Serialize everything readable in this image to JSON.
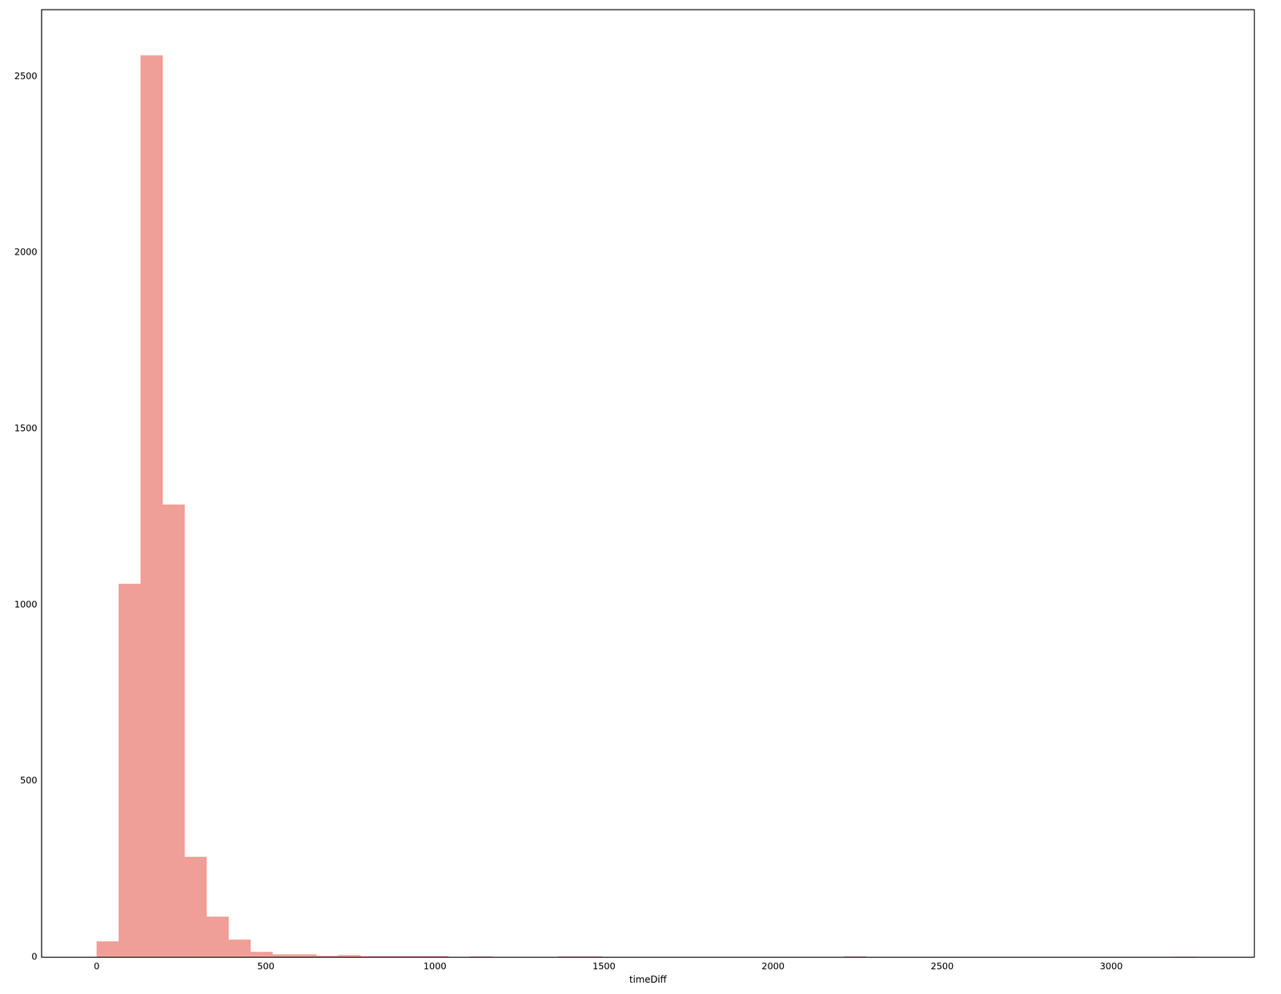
{
  "chart_data": {
    "type": "histogram",
    "x_label": "timeDiff",
    "bins": [
      0,
      65,
      130,
      195,
      260,
      325,
      390,
      455,
      520,
      585,
      650,
      715,
      780,
      845,
      910,
      975,
      1040,
      1105,
      1170,
      1235,
      1300,
      1365,
      1430,
      1495,
      1560,
      1625,
      1690,
      1755,
      1820,
      1885,
      1950,
      2015,
      2080,
      2145,
      2210,
      2275,
      2340,
      2405,
      2470,
      2535,
      2600,
      2665,
      2730,
      2795,
      2860,
      2925,
      2990,
      3055,
      3120,
      3185,
      3250
    ],
    "values": [
      45,
      1060,
      2560,
      1285,
      285,
      115,
      50,
      15,
      8,
      8,
      4,
      6,
      3,
      3,
      3,
      3,
      0,
      2,
      0,
      0,
      0,
      2,
      2,
      0,
      0,
      0,
      0,
      0,
      0,
      0,
      0,
      0,
      0,
      0,
      2,
      0,
      0,
      0,
      0,
      0,
      0,
      0,
      0,
      0,
      0,
      0,
      0,
      0,
      0,
      1
    ],
    "color": "#f09f98",
    "xlim": [
      -163,
      3423
    ],
    "xticks": [
      0,
      500,
      1000,
      1500,
      2000,
      2500,
      3000
    ],
    "ylim": [
      0,
      2690
    ],
    "yticks": [
      0,
      500,
      1000,
      1500,
      2000,
      2500
    ],
    "grid": false
  }
}
